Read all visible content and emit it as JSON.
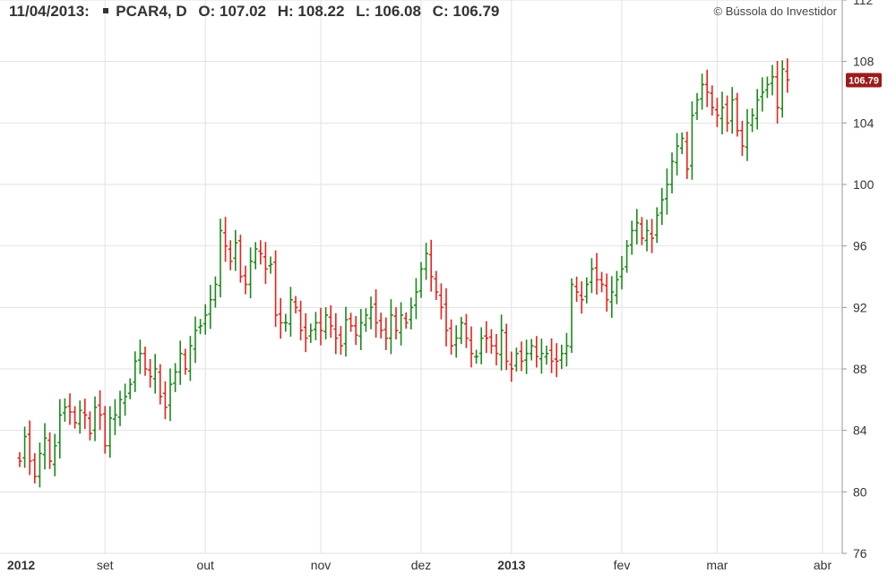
{
  "header": {
    "date": "11/04/2013:",
    "symbol": "PCAR4, D",
    "open_label": "O:",
    "open": "107.02",
    "high_label": "H:",
    "high": "108.22",
    "low_label": "L:",
    "low": "106.08",
    "close_label": "C:",
    "close": "106.79"
  },
  "copyright": "© Bússola do Investidor",
  "colors": {
    "up": "#1a8a1a",
    "down": "#e8221c",
    "grid": "#e2e2e2",
    "last_price_bg": "#9b1c1c"
  },
  "chart_data": {
    "type": "ohlc",
    "title": "",
    "ylim": [
      76,
      112
    ],
    "yticks": [
      76,
      80,
      84,
      88,
      92,
      96,
      100,
      104,
      108,
      112
    ],
    "xticks": [
      {
        "label": "2012",
        "bold": true,
        "index": 0
      },
      {
        "label": "set",
        "bold": false,
        "index": 17
      },
      {
        "label": "out",
        "bold": false,
        "index": 37
      },
      {
        "label": "nov",
        "bold": false,
        "index": 60
      },
      {
        "label": "dez",
        "bold": false,
        "index": 80
      },
      {
        "label": "2013",
        "bold": true,
        "index": 98
      },
      {
        "label": "fev",
        "bold": false,
        "index": 120
      },
      {
        "label": "mar",
        "bold": false,
        "index": 139
      },
      {
        "label": "abr",
        "bold": false,
        "index": 160
      }
    ],
    "last_price": "106.79",
    "closes": [
      82.0,
      83.6,
      82.0,
      81.0,
      82.5,
      83.5,
      82.0,
      83.0,
      85.0,
      85.5,
      85.2,
      84.5,
      85.3,
      85.0,
      83.8,
      85.5,
      85.0,
      83.0,
      84.8,
      85.0,
      86.0,
      86.2,
      87.0,
      88.5,
      89.0,
      88.0,
      87.5,
      88.0,
      86.2,
      85.5,
      87.0,
      87.8,
      89.0,
      88.0,
      89.5,
      90.5,
      90.8,
      91.5,
      92.5,
      93.5,
      97.0,
      96.0,
      95.0,
      96.2,
      94.0,
      93.5,
      95.0,
      95.8,
      95.5,
      94.5,
      94.8,
      91.5,
      91.0,
      91.0,
      92.5,
      92.0,
      90.5,
      90.0,
      90.5,
      91.0,
      90.5,
      91.5,
      90.8,
      90.0,
      89.5,
      91.2,
      90.8,
      90.2,
      91.0,
      91.5,
      92.0,
      91.0,
      90.5,
      90.0,
      91.5,
      90.5,
      91.5,
      91.0,
      92.0,
      93.0,
      94.5,
      95.5,
      94.0,
      93.0,
      92.0,
      90.5,
      89.5,
      90.0,
      91.0,
      90.0,
      89.0,
      88.8,
      90.0,
      90.0,
      89.5,
      89.0,
      90.5,
      88.5,
      88.0,
      89.0,
      88.5,
      89.0,
      89.5,
      88.8,
      89.0,
      89.0,
      88.5,
      88.5,
      89.0,
      89.5,
      93.5,
      93.0,
      92.5,
      93.5,
      94.5,
      93.8,
      93.5,
      92.5,
      93.0,
      93.8,
      94.5,
      96.0,
      97.0,
      97.5,
      96.5,
      97.0,
      96.5,
      98.0,
      99.0,
      100.0,
      101.5,
      102.5,
      103.0,
      101.0,
      104.5,
      105.5,
      106.5,
      106.0,
      105.0,
      104.5,
      105.0,
      104.0,
      105.5,
      103.5,
      102.5,
      104.0,
      104.5,
      105.5,
      106.0,
      106.5,
      107.0,
      105.0,
      107.5,
      106.8
    ]
  }
}
